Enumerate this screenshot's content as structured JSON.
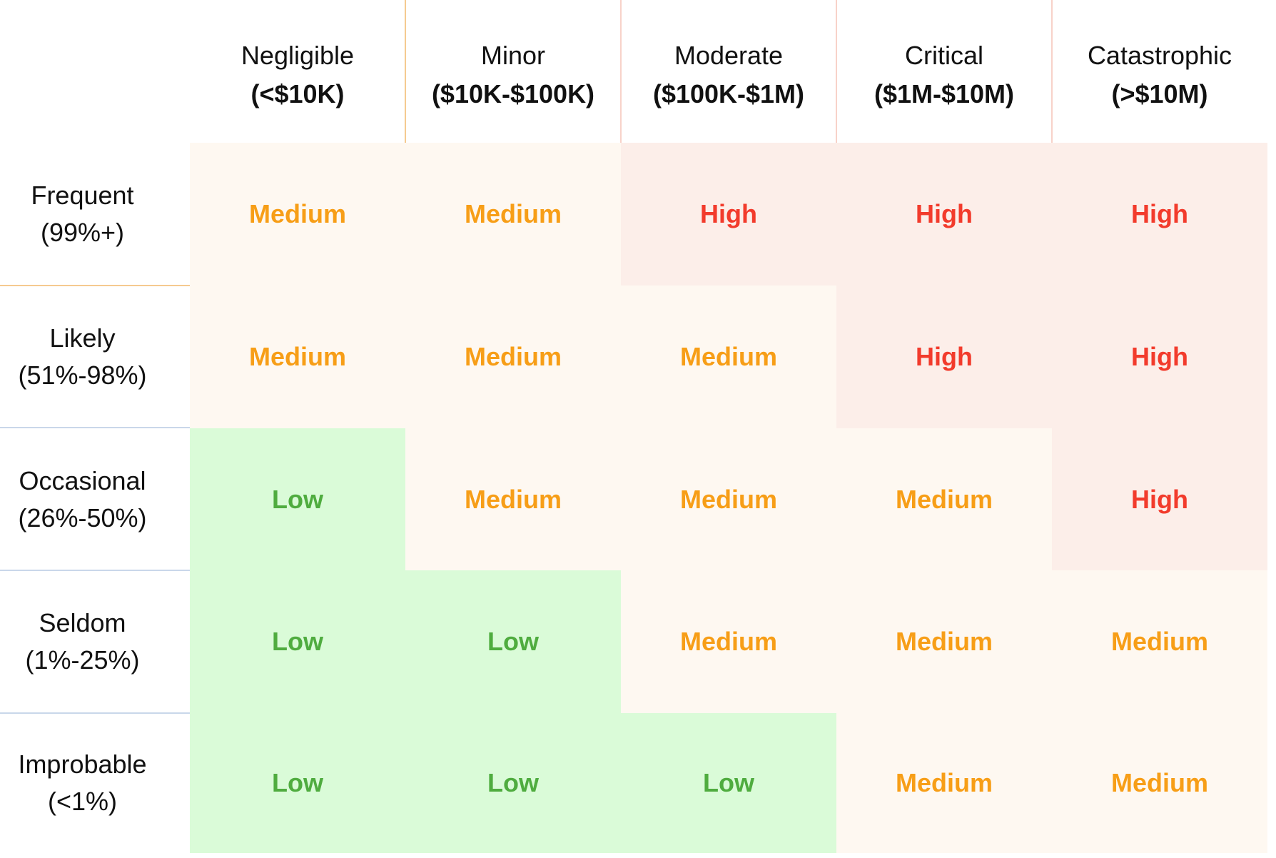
{
  "chart_data": {
    "type": "heatmap",
    "columns": [
      {
        "label": "Negligible",
        "range": "(<$10K)"
      },
      {
        "label": "Minor",
        "range": "($10K-$100K)"
      },
      {
        "label": "Moderate",
        "range": "($100K-$1M)"
      },
      {
        "label": "Critical",
        "range": "($1M-$10M)"
      },
      {
        "label": "Catastrophic",
        "range": "(>$10M)"
      }
    ],
    "rows": [
      {
        "label": "Frequent",
        "range": "(99%+)"
      },
      {
        "label": "Likely",
        "range": "(51%-98%)"
      },
      {
        "label": "Occasional",
        "range": "(26%-50%)"
      },
      {
        "label": "Seldom",
        "range": "(1%-25%)"
      },
      {
        "label": "Improbable",
        "range": "(<1%)"
      }
    ],
    "values": [
      [
        "Medium",
        "Medium",
        "High",
        "High",
        "High"
      ],
      [
        "Medium",
        "Medium",
        "Medium",
        "High",
        "High"
      ],
      [
        "Low",
        "Medium",
        "Medium",
        "Medium",
        "High"
      ],
      [
        "Low",
        "Low",
        "Medium",
        "Medium",
        "Medium"
      ],
      [
        "Low",
        "Low",
        "Low",
        "Medium",
        "Medium"
      ]
    ],
    "levels": {
      "Low": {
        "text_color": "#4FAC3F",
        "bg_color": "#DAFBD8"
      },
      "Medium": {
        "text_color": "#F79E17",
        "bg_color": "#FEF8F1"
      },
      "High": {
        "text_color": "#F23B2C",
        "bg_color": "#FCEEE9"
      }
    },
    "legend_position": "none",
    "grid": "off"
  },
  "style": {
    "background": "#FFFFFF",
    "label_text_color": "#111111",
    "header_divider_colors": [
      "#F5CA90",
      "#F8D2C9",
      "#F8D2C9",
      "#F8D2C9"
    ],
    "row_divider_colors": [
      "#F5CA90",
      "#C9D7EA",
      "#C9D7EA",
      "#C9D7EA"
    ]
  }
}
